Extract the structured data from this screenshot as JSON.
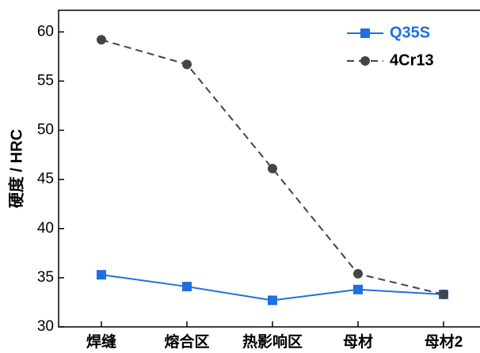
{
  "chart_data": {
    "type": "line",
    "y_label": "硬度 / HRC",
    "categories": [
      "焊缝",
      "熔合区",
      "热影响区",
      "母材",
      "母材2"
    ],
    "series": [
      {
        "name": "Q35S",
        "color": "#1f6fe0",
        "marker": "square",
        "dashed": false,
        "values": [
          35.3,
          34.1,
          32.7,
          33.8,
          33.3
        ]
      },
      {
        "name": "4Cr13",
        "color": "#444444",
        "marker": "circle",
        "dashed": true,
        "values": [
          59.2,
          56.7,
          46.1,
          35.4,
          33.3
        ]
      }
    ],
    "ylim": [
      30,
      62.2
    ],
    "yticks": [
      30,
      35,
      40,
      45,
      50,
      55,
      60
    ],
    "grid": false,
    "legend": "top-right"
  }
}
